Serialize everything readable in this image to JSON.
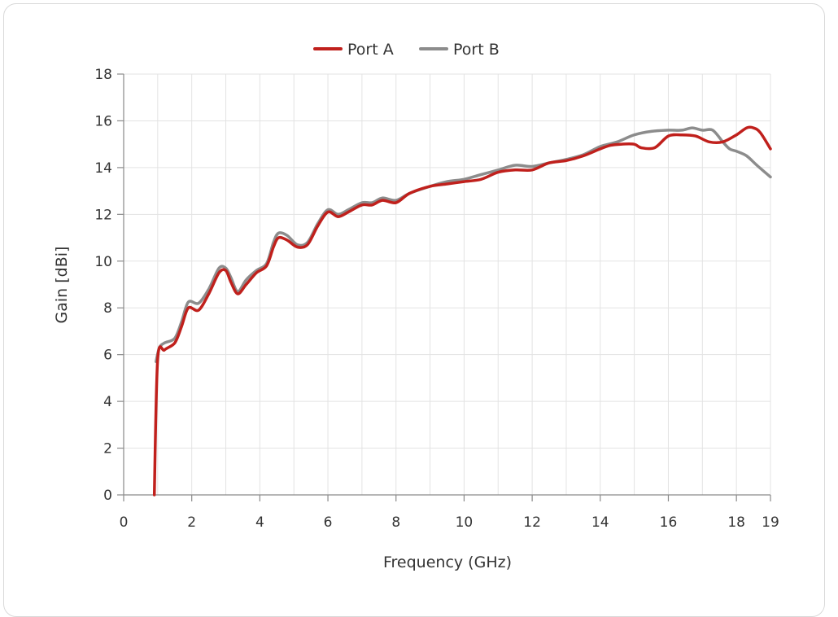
{
  "chart_data": {
    "type": "line",
    "title": "",
    "xlabel": "Frequency (GHz)",
    "ylabel": "Gain [dBi]",
    "xlim": [
      0,
      19
    ],
    "ylim": [
      0,
      18
    ],
    "xticks": [
      0,
      2,
      4,
      6,
      8,
      10,
      12,
      14,
      16,
      18,
      19
    ],
    "yticks": [
      0,
      2,
      4,
      6,
      8,
      10,
      12,
      14,
      16,
      18
    ],
    "grid": true,
    "legend_position": "top-center",
    "series": [
      {
        "name": "Port A",
        "color": "#c0201c",
        "x": [
          0.9,
          1.0,
          1.2,
          1.5,
          1.7,
          1.9,
          2.2,
          2.5,
          2.8,
          3.0,
          3.15,
          3.35,
          3.6,
          3.9,
          4.2,
          4.4,
          4.55,
          4.8,
          5.1,
          5.4,
          5.7,
          6.0,
          6.3,
          6.6,
          7.0,
          7.3,
          7.6,
          8.0,
          8.4,
          9.0,
          9.5,
          10.0,
          10.5,
          11.0,
          11.5,
          12.0,
          12.5,
          13.0,
          13.5,
          14.0,
          14.3,
          14.6,
          15.0,
          15.2,
          15.6,
          16.0,
          16.4,
          16.8,
          17.2,
          17.6,
          18.0,
          18.3,
          18.5,
          18.7,
          19.0
        ],
        "y": [
          0,
          5.8,
          6.2,
          6.5,
          7.2,
          8.0,
          7.9,
          8.6,
          9.5,
          9.6,
          9.1,
          8.6,
          9.0,
          9.5,
          9.8,
          10.6,
          11.0,
          10.9,
          10.6,
          10.7,
          11.5,
          12.1,
          11.9,
          12.1,
          12.4,
          12.4,
          12.6,
          12.5,
          12.9,
          13.2,
          13.3,
          13.4,
          13.5,
          13.8,
          13.9,
          13.9,
          14.2,
          14.3,
          14.5,
          14.8,
          14.95,
          15.0,
          15.0,
          14.85,
          14.85,
          15.35,
          15.4,
          15.35,
          15.1,
          15.1,
          15.4,
          15.7,
          15.7,
          15.5,
          14.8
        ]
      },
      {
        "name": "Port B",
        "color": "#8c8c8c",
        "x": [
          0.95,
          1.05,
          1.2,
          1.5,
          1.7,
          1.9,
          2.2,
          2.5,
          2.8,
          3.0,
          3.15,
          3.35,
          3.6,
          3.9,
          4.2,
          4.4,
          4.55,
          4.8,
          5.1,
          5.4,
          5.7,
          6.0,
          6.3,
          6.6,
          7.0,
          7.3,
          7.6,
          8.0,
          8.4,
          9.0,
          9.5,
          10.0,
          10.5,
          11.0,
          11.5,
          12.0,
          12.5,
          13.0,
          13.5,
          14.0,
          14.5,
          15.0,
          15.5,
          16.0,
          16.4,
          16.7,
          17.0,
          17.3,
          17.6,
          17.8,
          18.0,
          18.3,
          18.6,
          19.0
        ],
        "y": [
          5.7,
          6.3,
          6.5,
          6.7,
          7.4,
          8.25,
          8.2,
          8.8,
          9.7,
          9.7,
          9.3,
          8.7,
          9.2,
          9.6,
          9.9,
          10.8,
          11.2,
          11.1,
          10.7,
          10.8,
          11.6,
          12.2,
          12.0,
          12.2,
          12.5,
          12.5,
          12.7,
          12.6,
          12.9,
          13.2,
          13.4,
          13.5,
          13.7,
          13.9,
          14.1,
          14.05,
          14.2,
          14.35,
          14.55,
          14.9,
          15.1,
          15.4,
          15.55,
          15.6,
          15.6,
          15.7,
          15.6,
          15.6,
          15.1,
          14.8,
          14.7,
          14.5,
          14.1,
          13.6
        ]
      }
    ]
  }
}
